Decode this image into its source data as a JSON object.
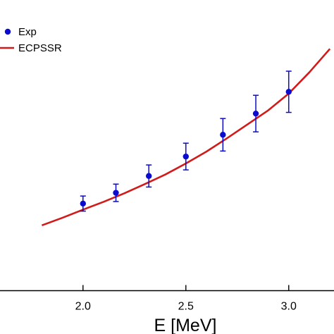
{
  "chart_data": {
    "type": "scatter",
    "xlabel": "E [MeV]",
    "ylabel": "",
    "title": "",
    "xlim": [
      1.6,
      3.22
    ],
    "ylim": [
      0,
      10
    ],
    "x_ticks": [
      {
        "value": 2.0,
        "label": "2.0"
      },
      {
        "value": 2.5,
        "label": "2.5"
      },
      {
        "value": 3.0,
        "label": "3.0"
      }
    ],
    "legend_position": "top-left",
    "grid": false,
    "series": [
      {
        "name": "Exp",
        "kind": "points",
        "color": "#0b0bd0",
        "points": [
          {
            "x": 2.0,
            "y": 3.0,
            "err": 0.26
          },
          {
            "x": 2.16,
            "y": 3.37,
            "err": 0.3
          },
          {
            "x": 2.32,
            "y": 3.95,
            "err": 0.38
          },
          {
            "x": 2.5,
            "y": 4.62,
            "err": 0.46
          },
          {
            "x": 2.68,
            "y": 5.37,
            "err": 0.56
          },
          {
            "x": 2.84,
            "y": 6.1,
            "err": 0.63
          },
          {
            "x": 3.0,
            "y": 6.85,
            "err": 0.71
          }
        ]
      },
      {
        "name": "ECPSSR",
        "kind": "line",
        "color": "#d11a1a",
        "points": [
          {
            "x": 1.8,
            "y": 2.25
          },
          {
            "x": 1.9,
            "y": 2.51
          },
          {
            "x": 2.0,
            "y": 2.79
          },
          {
            "x": 2.1,
            "y": 3.06
          },
          {
            "x": 2.2,
            "y": 3.35
          },
          {
            "x": 2.3,
            "y": 3.67
          },
          {
            "x": 2.4,
            "y": 4.0
          },
          {
            "x": 2.5,
            "y": 4.38
          },
          {
            "x": 2.6,
            "y": 4.79
          },
          {
            "x": 2.7,
            "y": 5.25
          },
          {
            "x": 2.8,
            "y": 5.73
          },
          {
            "x": 2.9,
            "y": 6.21
          },
          {
            "x": 3.0,
            "y": 6.79
          },
          {
            "x": 3.1,
            "y": 7.52
          },
          {
            "x": 3.2,
            "y": 8.33
          }
        ]
      }
    ]
  }
}
